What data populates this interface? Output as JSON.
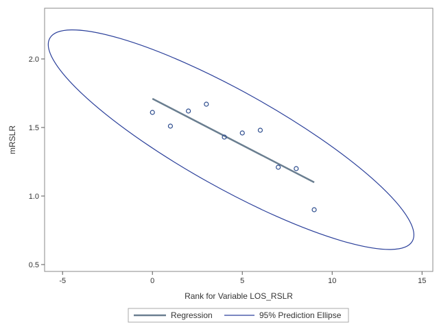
{
  "chart_data": {
    "type": "scatter",
    "xlabel": "Rank for Variable LOS_RSLR",
    "ylabel": "mRSLR",
    "xlim": [
      -6,
      15.6
    ],
    "ylim": [
      0.45,
      2.37
    ],
    "xticks": [
      -5,
      0,
      5,
      10,
      15
    ],
    "xtick_labels": [
      "-5",
      "0",
      "5",
      "10",
      "15"
    ],
    "yticks": [
      0.5,
      1.0,
      1.5,
      2.0
    ],
    "ytick_labels": [
      "0.5",
      "1.0",
      "1.5",
      "2.0"
    ],
    "grid": false,
    "legend_position": "bottom-center",
    "series": [
      {
        "kind": "points",
        "x": [
          0,
          1,
          2,
          3,
          4,
          5,
          6,
          7,
          8,
          9
        ],
        "y": [
          1.61,
          1.51,
          1.62,
          1.67,
          1.43,
          1.46,
          1.48,
          1.21,
          1.2,
          0.9
        ],
        "color": "#2a4a8c"
      },
      {
        "kind": "line",
        "name": "Regression",
        "x": [
          0,
          9
        ],
        "y": [
          1.71,
          1.1
        ],
        "color": "#6a7e90"
      },
      {
        "kind": "ellipse",
        "name": "95% Prediction Ellipse",
        "outline_x": [
          -5.62,
          -4.08,
          3.0,
          13.2,
          14.54
        ],
        "outline_y": [
          2.02,
          2.21,
          1.9,
          0.61,
          0.73
        ],
        "color": "#2a3f9a"
      }
    ],
    "legend": [
      "Regression",
      "95% Prediction Ellipse"
    ]
  }
}
